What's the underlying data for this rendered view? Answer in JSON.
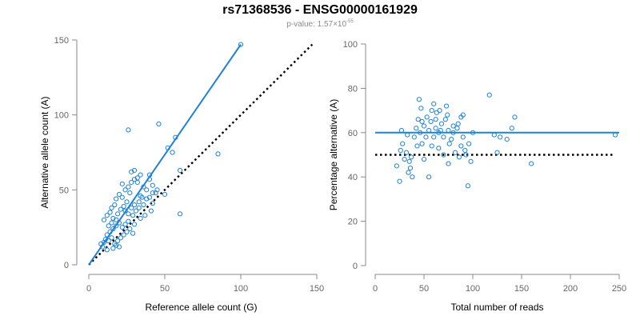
{
  "header": {
    "title": "rs71368536 - ENSG00000161929",
    "subtitle_prefix": "p-value: 1.57×10",
    "subtitle_exponent": "-55"
  },
  "colors": {
    "series": "#1f82d6",
    "reference_line": "#000000",
    "axis": "#888888",
    "tick_label": "#666666"
  },
  "chart_data": [
    {
      "type": "scatter",
      "xlabel": "Reference allele count (G)",
      "ylabel": "Alternative allele count (A)",
      "xlim": [
        0,
        150
      ],
      "ylim": [
        0,
        150
      ],
      "xticks": [
        0,
        50,
        100,
        150
      ],
      "yticks": [
        0,
        50,
        100,
        150
      ],
      "grid": false,
      "fit_line": {
        "x": [
          0,
          100
        ],
        "y": [
          0,
          147
        ]
      },
      "reference_line": {
        "x": [
          0,
          147
        ],
        "y": [
          0,
          147
        ],
        "style": "dotted"
      },
      "points": [
        [
          100,
          147
        ],
        [
          26,
          90
        ],
        [
          46,
          94
        ],
        [
          52,
          78
        ],
        [
          55,
          75
        ],
        [
          57,
          85
        ],
        [
          85,
          74
        ],
        [
          60,
          63
        ],
        [
          45,
          50
        ],
        [
          50,
          47
        ],
        [
          60,
          34
        ],
        [
          27,
          48
        ],
        [
          28,
          62
        ],
        [
          30,
          63
        ],
        [
          32,
          55
        ],
        [
          34,
          60
        ],
        [
          36,
          52
        ],
        [
          38,
          50
        ],
        [
          40,
          57
        ],
        [
          42,
          53
        ],
        [
          44,
          48
        ],
        [
          35,
          45
        ],
        [
          33,
          42
        ],
        [
          30,
          40
        ],
        [
          28,
          38
        ],
        [
          25,
          42
        ],
        [
          22,
          45
        ],
        [
          20,
          47
        ],
        [
          18,
          44
        ],
        [
          17,
          40
        ],
        [
          15,
          38
        ],
        [
          14,
          35
        ],
        [
          12,
          33
        ],
        [
          10,
          30
        ],
        [
          16,
          31
        ],
        [
          19,
          34
        ],
        [
          21,
          37
        ],
        [
          23,
          39
        ],
        [
          24,
          36
        ],
        [
          26,
          34
        ],
        [
          29,
          33
        ],
        [
          31,
          36
        ],
        [
          33,
          38
        ],
        [
          36,
          40
        ],
        [
          38,
          44
        ],
        [
          40,
          45
        ],
        [
          42,
          41
        ],
        [
          22,
          54
        ],
        [
          24,
          50
        ],
        [
          26,
          52
        ],
        [
          28,
          55
        ],
        [
          30,
          57
        ],
        [
          32,
          58
        ],
        [
          12,
          20
        ],
        [
          14,
          22
        ],
        [
          16,
          24
        ],
        [
          18,
          26
        ],
        [
          20,
          28
        ],
        [
          22,
          25
        ],
        [
          24,
          27
        ],
        [
          10,
          15
        ],
        [
          11,
          17
        ],
        [
          13,
          16
        ],
        [
          15,
          18
        ],
        [
          17,
          14
        ],
        [
          19,
          16
        ],
        [
          21,
          18
        ],
        [
          23,
          20
        ],
        [
          25,
          22
        ],
        [
          27,
          24
        ],
        [
          29,
          21
        ],
        [
          9,
          12
        ],
        [
          8,
          14
        ],
        [
          12,
          10
        ],
        [
          16,
          11
        ],
        [
          18,
          13
        ],
        [
          20,
          12
        ],
        [
          26,
          29
        ],
        [
          30,
          27
        ],
        [
          34,
          31
        ],
        [
          37,
          33
        ],
        [
          41,
          36
        ],
        [
          15,
          28
        ],
        [
          18,
          30
        ],
        [
          13,
          26
        ],
        [
          40,
          60
        ],
        [
          42,
          48
        ],
        [
          34,
          46
        ]
      ]
    },
    {
      "type": "scatter",
      "xlabel": "Total number of reads",
      "ylabel": "Percentage alternative (A)",
      "xlim": [
        0,
        250
      ],
      "ylim": [
        0,
        100
      ],
      "xticks": [
        0,
        50,
        100,
        150,
        200,
        250
      ],
      "yticks": [
        0,
        20,
        40,
        60,
        80,
        100
      ],
      "grid": false,
      "fit_line": {
        "x": [
          0,
          250
        ],
        "y": [
          60,
          60
        ]
      },
      "reference_line": {
        "x": [
          0,
          245
        ],
        "y": [
          50,
          50
        ],
        "style": "dotted"
      },
      "points": [
        [
          22,
          45
        ],
        [
          25,
          38
        ],
        [
          26,
          52
        ],
        [
          28,
          55
        ],
        [
          30,
          48
        ],
        [
          32,
          51
        ],
        [
          34,
          42
        ],
        [
          35,
          47
        ],
        [
          36,
          44
        ],
        [
          38,
          40
        ],
        [
          40,
          58
        ],
        [
          42,
          62
        ],
        [
          44,
          66
        ],
        [
          45,
          75
        ],
        [
          46,
          60
        ],
        [
          47,
          71
        ],
        [
          48,
          55
        ],
        [
          50,
          63
        ],
        [
          52,
          58
        ],
        [
          53,
          67
        ],
        [
          55,
          61
        ],
        [
          57,
          65
        ],
        [
          58,
          54
        ],
        [
          60,
          73
        ],
        [
          62,
          62
        ],
        [
          63,
          69
        ],
        [
          65,
          60
        ],
        [
          66,
          70
        ],
        [
          68,
          64
        ],
        [
          70,
          58
        ],
        [
          72,
          66
        ],
        [
          73,
          72
        ],
        [
          75,
          61
        ],
        [
          76,
          55
        ],
        [
          78,
          57
        ],
        [
          80,
          63
        ],
        [
          82,
          51
        ],
        [
          84,
          62
        ],
        [
          86,
          49
        ],
        [
          88,
          67
        ],
        [
          90,
          68
        ],
        [
          92,
          52
        ],
        [
          93,
          50
        ],
        [
          95,
          36
        ],
        [
          96,
          55
        ],
        [
          98,
          47
        ],
        [
          100,
          60
        ],
        [
          50,
          48
        ],
        [
          55,
          40
        ],
        [
          60,
          58
        ],
        [
          65,
          53
        ],
        [
          70,
          50
        ],
        [
          75,
          46
        ],
        [
          80,
          60
        ],
        [
          85,
          64
        ],
        [
          90,
          58
        ],
        [
          27,
          61
        ],
        [
          33,
          59
        ],
        [
          43,
          54
        ],
        [
          48,
          65
        ],
        [
          117,
          77
        ],
        [
          122,
          59
        ],
        [
          125,
          51
        ],
        [
          128,
          58
        ],
        [
          135,
          57
        ],
        [
          140,
          62
        ],
        [
          143,
          67
        ],
        [
          160,
          46
        ],
        [
          246,
          59
        ],
        [
          37,
          49
        ],
        [
          58,
          70
        ],
        [
          62,
          66
        ],
        [
          67,
          61
        ],
        [
          74,
          68
        ],
        [
          88,
          54
        ]
      ]
    }
  ]
}
